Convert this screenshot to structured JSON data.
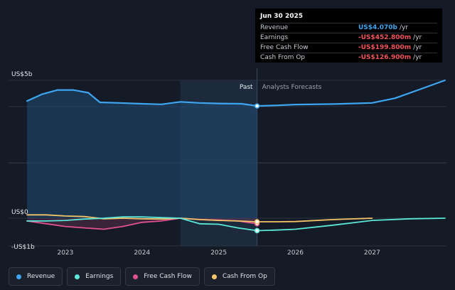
{
  "tooltip": {
    "date": "Jun 30 2025",
    "rows": [
      {
        "label": "Revenue",
        "value": "US$4.070b",
        "unit": "/yr",
        "color": "#3ea6f1"
      },
      {
        "label": "Earnings",
        "value": "-US$452.800m",
        "unit": "/yr",
        "color": "#f2555a"
      },
      {
        "label": "Free Cash Flow",
        "value": "-US$199.800m",
        "unit": "/yr",
        "color": "#f2555a"
      },
      {
        "label": "Cash From Op",
        "value": "-US$126.900m",
        "unit": "/yr",
        "color": "#f2555a"
      }
    ]
  },
  "legend": [
    {
      "label": "Revenue",
      "color": "#3ea6f1"
    },
    {
      "label": "Earnings",
      "color": "#5be8d8"
    },
    {
      "label": "Free Cash Flow",
      "color": "#e05192"
    },
    {
      "label": "Cash From Op",
      "color": "#f5c46a"
    }
  ],
  "chart_data": {
    "type": "line",
    "y_labels": [
      "US$5b",
      "US$0",
      "-US$1b"
    ],
    "x_ticks": [
      "2023",
      "2024",
      "2025",
      "2026",
      "2027"
    ],
    "ylim": [
      -1,
      5
    ],
    "past_label": "Past",
    "forecast_label": "Analysts Forecasts",
    "divider_date": 2025.5,
    "series": [
      {
        "name": "Revenue",
        "color": "#3ea6f1",
        "x": [
          2022.5,
          2022.7,
          2022.9,
          2023.1,
          2023.3,
          2023.45,
          2023.7,
          2024.0,
          2024.25,
          2024.5,
          2024.75,
          2025.0,
          2025.3,
          2025.5,
          2025.75,
          2026.0,
          2026.5,
          2027.0,
          2027.3,
          2027.6,
          2027.95
        ],
        "y": [
          4.25,
          4.5,
          4.65,
          4.65,
          4.55,
          4.2,
          4.18,
          4.15,
          4.13,
          4.22,
          4.18,
          4.16,
          4.15,
          4.07,
          4.09,
          4.12,
          4.14,
          4.18,
          4.35,
          4.65,
          5.0
        ]
      },
      {
        "name": "Earnings",
        "color": "#5be8d8",
        "x": [
          2022.5,
          2022.75,
          2023.0,
          2023.25,
          2023.5,
          2023.75,
          2024.0,
          2024.25,
          2024.5,
          2024.75,
          2025.0,
          2025.25,
          2025.5,
          2025.75,
          2026.0,
          2026.5,
          2027.0,
          2027.5,
          2027.95
        ],
        "y": [
          -0.1,
          -0.1,
          -0.08,
          -0.03,
          0.0,
          0.05,
          0.05,
          0.02,
          0.0,
          -0.2,
          -0.22,
          -0.35,
          -0.45,
          -0.43,
          -0.4,
          -0.25,
          -0.08,
          -0.02,
          0.0
        ]
      },
      {
        "name": "Free Cash Flow",
        "color": "#e05192",
        "x": [
          2022.5,
          2022.75,
          2023.0,
          2023.25,
          2023.5,
          2023.75,
          2024.0,
          2024.25,
          2024.5,
          2024.75,
          2025.0,
          2025.25,
          2025.5
        ],
        "y": [
          -0.1,
          -0.2,
          -0.3,
          -0.35,
          -0.4,
          -0.3,
          -0.15,
          -0.1,
          0.0,
          -0.05,
          -0.07,
          -0.1,
          -0.2
        ]
      },
      {
        "name": "Cash From Op",
        "color": "#f5c46a",
        "x": [
          2022.5,
          2022.75,
          2023.0,
          2023.25,
          2023.5,
          2023.75,
          2024.0,
          2024.25,
          2024.5,
          2024.75,
          2025.0,
          2025.25,
          2025.5,
          2025.75,
          2026.0,
          2026.5,
          2027.0
        ],
        "y": [
          0.12,
          0.12,
          0.08,
          0.06,
          -0.02,
          0.0,
          -0.02,
          -0.03,
          0.0,
          -0.05,
          -0.08,
          -0.1,
          -0.13,
          -0.13,
          -0.12,
          -0.05,
          0.0
        ]
      }
    ]
  }
}
